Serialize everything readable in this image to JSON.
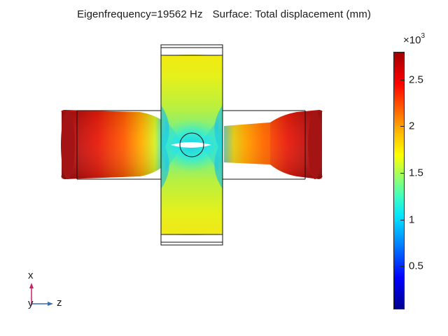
{
  "title": {
    "eigen": "Eigenfrequency=19562 Hz",
    "surface": "Surface: Total displacement (mm)"
  },
  "colorbar": {
    "multiplier_base": "×10",
    "multiplier_exp": "3",
    "min": 0.05,
    "max": 2.8,
    "ticks": [
      "0.5",
      "1",
      "1.5",
      "2",
      "2.5"
    ],
    "tick_values": [
      0.5,
      1,
      1.5,
      2,
      2.5
    ],
    "colormap": "rainbow"
  },
  "axes": {
    "vertical": "x",
    "horizontal": "z",
    "out_of_plane": "y"
  },
  "colors": {
    "axis_vertical": "#cc2266",
    "axis_horizontal": "#3a6ea5"
  }
}
